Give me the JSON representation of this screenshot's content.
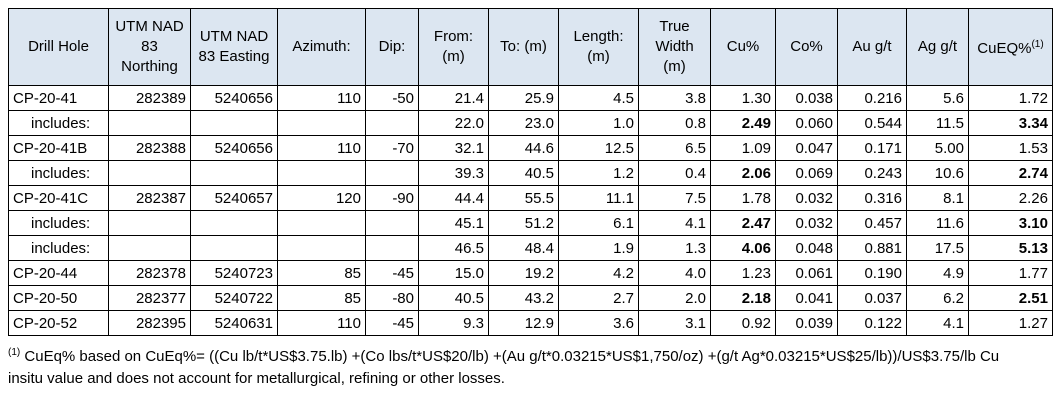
{
  "table": {
    "header": [
      "Drill Hole",
      "UTM NAD 83 Northing",
      "UTM NAD 83 Easting",
      "Azimuth:",
      "Dip:",
      "From: (m)",
      "To: (m)",
      "Length: (m)",
      "True Width (m)",
      "Cu%",
      "Co%",
      "Au g/t",
      "Ag g/t",
      {
        "text": "CuEQ%",
        "sup": "(1)"
      }
    ],
    "rows": [
      {
        "cells": [
          "CP-20-41",
          "282389",
          "5240656",
          "110",
          "-50",
          "21.4",
          "25.9",
          "4.5",
          "3.8",
          "1.30",
          "0.038",
          "0.216",
          "5.6",
          "1.72"
        ],
        "bold": []
      },
      {
        "cells": [
          "includes:",
          null,
          null,
          null,
          null,
          "22.0",
          "23.0",
          "1.0",
          "0.8",
          "2.49",
          "0.060",
          "0.544",
          "11.5",
          "3.34"
        ],
        "bold": [
          9,
          13
        ]
      },
      {
        "cells": [
          "CP-20-41B",
          "282388",
          "5240656",
          "110",
          "-70",
          "32.1",
          "44.6",
          "12.5",
          "6.5",
          "1.09",
          "0.047",
          "0.171",
          "5.00",
          "1.53"
        ],
        "bold": []
      },
      {
        "cells": [
          "includes:",
          null,
          null,
          null,
          null,
          "39.3",
          "40.5",
          "1.2",
          "0.4",
          "2.06",
          "0.069",
          "0.243",
          "10.6",
          "2.74"
        ],
        "bold": [
          9,
          13
        ]
      },
      {
        "cells": [
          "CP-20-41C",
          "282387",
          "5240657",
          "120",
          "-90",
          "44.4",
          "55.5",
          "11.1",
          "7.5",
          "1.78",
          "0.032",
          "0.316",
          "8.1",
          "2.26"
        ],
        "bold": []
      },
      {
        "cells": [
          "includes:",
          null,
          null,
          null,
          null,
          "45.1",
          "51.2",
          "6.1",
          "4.1",
          "2.47",
          "0.032",
          "0.457",
          "11.6",
          "3.10"
        ],
        "bold": [
          9,
          13
        ]
      },
      {
        "cells": [
          "includes:",
          null,
          null,
          null,
          null,
          "46.5",
          "48.4",
          "1.9",
          "1.3",
          "4.06",
          "0.048",
          "0.881",
          "17.5",
          "5.13"
        ],
        "bold": [
          9,
          13
        ]
      },
      {
        "cells": [
          "CP-20-44",
          "282378",
          "5240723",
          "85",
          "-45",
          "15.0",
          "19.2",
          "4.2",
          "4.0",
          "1.23",
          "0.061",
          "0.190",
          "4.9",
          "1.77"
        ],
        "bold": []
      },
      {
        "cells": [
          "CP-20-50",
          "282377",
          "5240722",
          "85",
          "-80",
          "40.5",
          "43.2",
          "2.7",
          "2.0",
          "2.18",
          "0.041",
          "0.037",
          "6.2",
          "2.51"
        ],
        "bold": [
          9,
          13
        ]
      },
      {
        "cells": [
          "CP-20-52",
          "282395",
          "5240631",
          "110",
          "-45",
          "9.3",
          "12.9",
          "3.6",
          "3.1",
          "0.92",
          "0.039",
          "0.122",
          "4.1",
          "1.27"
        ],
        "bold": []
      }
    ]
  },
  "footnote": {
    "sup": "(1)",
    "text": "CuEq% based on CuEq%= ((Cu lb/t*US$3.75.lb) +(Co lbs/t*US$20/lb) +(Au g/t*0.03215*US$1,750/oz) +(g/t Ag*0.03215*US$25/lb))/US$3.75/lb Cu insitu value and does not account for metallurgical, refining or other losses."
  }
}
